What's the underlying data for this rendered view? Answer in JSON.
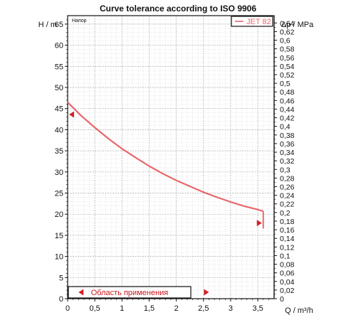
{
  "chart_data": {
    "type": "line",
    "title": "Curve tolerance according to ISO 9906",
    "subtitle": "Напор",
    "xlabel": "Q / m³/h",
    "ylabel": "H / m",
    "y2label": "Δp / MPa",
    "xlim": [
      0,
      3.8
    ],
    "ylim": [
      0,
      67
    ],
    "y2lim": [
      0,
      0.657
    ],
    "x_ticks": [
      "0",
      "0,5",
      "1",
      "1,5",
      "2",
      "2,5",
      "3",
      "3,5"
    ],
    "y_ticks": [
      "0",
      "5",
      "10",
      "15",
      "20",
      "25",
      "30",
      "35",
      "40",
      "45",
      "50",
      "55",
      "60",
      "65"
    ],
    "y2_ticks": [
      "0",
      "0,02",
      "0,04",
      "0,06",
      "0,08",
      "0,1",
      "0,12",
      "0,14",
      "0,16",
      "0,18",
      "0,2",
      "0,22",
      "0,24",
      "0,26",
      "0,28",
      "0,3",
      "0,32",
      "0,34",
      "0,36",
      "0,38",
      "0,4",
      "0,42",
      "0,44",
      "0,46",
      "0,48",
      "0,5",
      "0,52",
      "0,54",
      "0,56",
      "0,58",
      "0,6",
      "0,62",
      "0,64"
    ],
    "grid": true,
    "legend_position": "top-right",
    "series": [
      {
        "name": "JET 82",
        "color": "#e8666c",
        "x": [
          0,
          0.25,
          0.5,
          0.75,
          1.0,
          1.25,
          1.5,
          1.75,
          2.0,
          2.25,
          2.5,
          2.75,
          3.0,
          3.25,
          3.5,
          3.6
        ],
        "y": [
          46.5,
          43.3,
          40.5,
          37.9,
          35.5,
          33.4,
          31.4,
          29.6,
          28.0,
          26.6,
          25.2,
          24.0,
          22.9,
          21.9,
          21.1,
          20.7
        ]
      }
    ],
    "tolerance_end_y": 20.7,
    "tolerance_end_x": 3.6,
    "markers": [
      {
        "x": 0,
        "y": 43.6,
        "direction": "left"
      },
      {
        "x": 3.6,
        "y": 17.9,
        "direction": "right"
      }
    ],
    "range_label": "Область применения",
    "range_x": [
      0.2,
      2.6
    ]
  }
}
